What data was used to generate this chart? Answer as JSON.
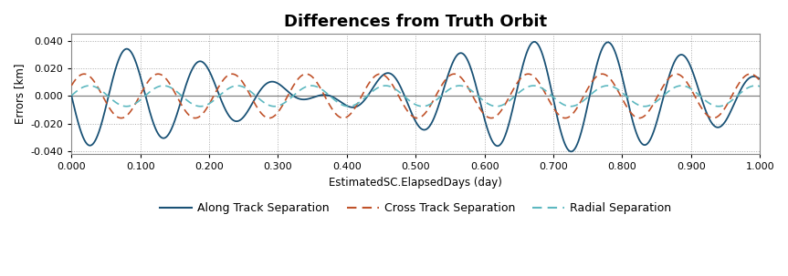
{
  "title": "Differences from Truth Orbit",
  "xlabel": "EstimatedSC.ElapsedDays (day)",
  "ylabel": "Errors [km]",
  "xlim": [
    0.0,
    1.0
  ],
  "ylim": [
    -0.042,
    0.045
  ],
  "yticks": [
    -0.04,
    -0.02,
    0.0,
    0.02,
    0.04
  ],
  "xticks": [
    0.0,
    0.1,
    0.2,
    0.3,
    0.4,
    0.5,
    0.6,
    0.7,
    0.8,
    0.9,
    1.0
  ],
  "bg_color": "#ffffff",
  "plot_bg_color": "#ffffff",
  "grid_color": "#aaaaaa",
  "zero_line_color": "#808080",
  "along_track_color": "#1a5276",
  "cross_track_color": "#c0522a",
  "radial_color": "#5db8c0",
  "legend_labels": [
    "Along Track Separation",
    "Cross Track Separation",
    "Radial Separation"
  ],
  "n_points": 3000,
  "along_freq1": 10.0,
  "along_freq2": 8.6,
  "along_amp": 0.036,
  "along_growth": 0.006,
  "cross_freq": 9.3,
  "cross_amp": 0.016,
  "cross_phase": 0.5,
  "radial_freq": 9.3,
  "radial_amp": 0.0075,
  "radial_phase": 0.05
}
